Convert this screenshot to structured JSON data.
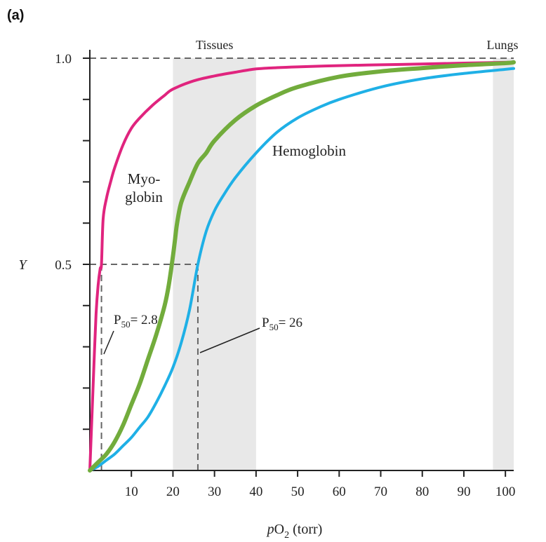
{
  "panel_label": "(a)",
  "colors": {
    "myoglobin": "#e0247e",
    "hemoglobin": "#1fb0e6",
    "green_curve": "#72ac3c",
    "shade": "#e8e8e8",
    "axis": "#222222",
    "dashed": "#666666"
  },
  "chart_data": {
    "type": "line",
    "xlabel_italic": "p",
    "xlabel_main": "O",
    "xlabel_sub": "2",
    "xlabel_suffix": " (torr)",
    "ylabel": "Y",
    "xlim": [
      0,
      102
    ],
    "ylim": [
      0,
      1.0
    ],
    "x_ticks": [
      10,
      20,
      30,
      40,
      50,
      60,
      70,
      80,
      90,
      100
    ],
    "x_tick_labels": [
      "10",
      "20",
      "30",
      "40",
      "50",
      "60",
      "70",
      "80",
      "90",
      "100"
    ],
    "y_ticks": [
      0.1,
      0.2,
      0.3,
      0.4,
      0.5,
      0.6,
      0.7,
      0.8,
      0.9,
      1.0
    ],
    "y_tick_labels": [
      {
        "value": 0.5,
        "text": "0.5"
      },
      {
        "value": 1.0,
        "text": "1.0"
      }
    ],
    "shaded_regions": [
      {
        "label": "Tissues",
        "x": [
          20,
          40
        ]
      },
      {
        "label": "Lungs",
        "x": [
          97,
          102
        ]
      }
    ],
    "series": [
      {
        "name": "Myo-globin",
        "label_lines": [
          "Myo-",
          "globin"
        ],
        "color_key": "myoglobin",
        "x": [
          0,
          0.5,
          1,
          1.5,
          2,
          2.5,
          2.8,
          3.2,
          4,
          5,
          6,
          8,
          10,
          12,
          15,
          18,
          20,
          25,
          30,
          35,
          40,
          45,
          50,
          60,
          70,
          80,
          90,
          100,
          102
        ],
        "y": [
          0,
          0.13,
          0.26,
          0.38,
          0.45,
          0.49,
          0.5,
          0.61,
          0.66,
          0.7,
          0.735,
          0.79,
          0.83,
          0.855,
          0.885,
          0.91,
          0.925,
          0.945,
          0.957,
          0.966,
          0.974,
          0.977,
          0.979,
          0.982,
          0.984,
          0.986,
          0.988,
          0.99,
          0.99
        ]
      },
      {
        "name": "Hemoglobin",
        "label_lines": [
          "Hemoglobin"
        ],
        "color_key": "hemoglobin",
        "x": [
          0,
          2,
          4,
          6,
          8,
          10,
          12,
          14,
          16,
          18,
          20,
          22,
          24,
          26,
          28,
          30,
          32,
          35,
          40,
          45,
          50,
          55,
          60,
          70,
          80,
          90,
          100,
          102
        ],
        "y": [
          0,
          0.01,
          0.025,
          0.04,
          0.06,
          0.08,
          0.105,
          0.13,
          0.165,
          0.205,
          0.25,
          0.31,
          0.39,
          0.5,
          0.58,
          0.63,
          0.665,
          0.71,
          0.77,
          0.82,
          0.855,
          0.88,
          0.9,
          0.93,
          0.95,
          0.963,
          0.973,
          0.975
        ]
      },
      {
        "name": "",
        "color_key": "green_curve",
        "x": [
          0,
          2,
          4,
          6,
          8,
          10,
          12,
          14,
          16,
          18,
          19,
          20,
          20.5,
          21,
          22,
          24,
          26,
          28,
          30,
          35,
          40,
          45,
          50,
          60,
          70,
          80,
          90,
          100,
          102
        ],
        "y": [
          0,
          0.02,
          0.04,
          0.07,
          0.11,
          0.16,
          0.21,
          0.27,
          0.33,
          0.4,
          0.45,
          0.52,
          0.56,
          0.6,
          0.65,
          0.7,
          0.745,
          0.77,
          0.8,
          0.85,
          0.885,
          0.91,
          0.93,
          0.955,
          0.968,
          0.976,
          0.983,
          0.988,
          0.99
        ]
      }
    ],
    "annotations": [
      {
        "sym": "P",
        "sub": "50",
        "value": "= 2.8",
        "x": 2.8
      },
      {
        "sym": "P",
        "sub": "50",
        "value": "= 26",
        "x": 26
      }
    ]
  }
}
